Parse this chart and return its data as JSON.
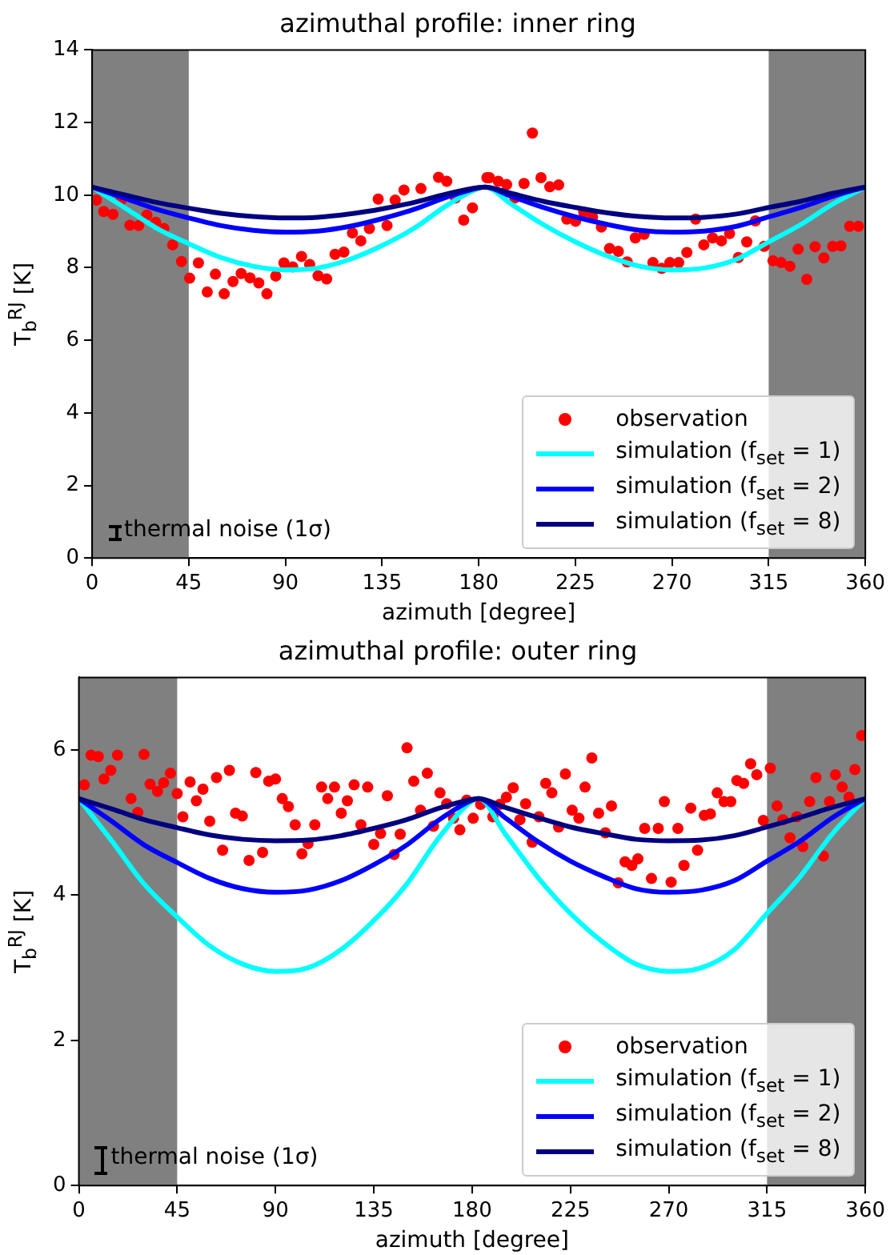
{
  "chart_data": [
    {
      "type": "scatter",
      "title": "azimuthal profile: inner ring",
      "xlabel": "azimuth [degree]",
      "ylabel": "T$_{b}$$^{RJ}$ [K]",
      "xlim": [
        0,
        360
      ],
      "xticks": [
        0,
        45,
        90,
        135,
        180,
        225,
        270,
        315,
        360
      ],
      "ylim": [
        0,
        14
      ],
      "yticks": [
        0,
        2,
        4,
        6,
        8,
        10,
        12,
        14
      ],
      "grid": false,
      "legend": "bottom right",
      "annotations": [
        "thermal noise (1σ)"
      ],
      "bands": [
        {
          "axis": "x",
          "from": 0,
          "to": 45,
          "color": "#808080"
        },
        {
          "axis": "x",
          "from": 315,
          "to": 360,
          "color": "#808080"
        }
      ],
      "series": [
        {
          "type": "scatter",
          "name": "observation",
          "color": "#ff0000",
          "marker": "circle",
          "x": [
            2.0,
            5.4,
            9.7,
            13.5,
            17.6,
            21.7,
            25.5,
            29.6,
            33.4,
            37.5,
            41.6,
            45.4,
            49.5,
            53.6,
            57.4,
            61.5,
            65.6,
            69.4,
            73.5,
            77.6,
            81.4,
            85.5,
            89.3,
            93.4,
            97.5,
            101.3,
            105.2,
            109.2,
            113.1,
            117.2,
            121.2,
            125.1,
            129.1,
            133.2,
            137.3,
            141.1,
            145.2,
            153.1,
            161.3,
            165.1,
            169.2,
            173.0,
            177.1,
            183.8,
            185.0,
            189.1,
            193.0,
            196.8,
            201.1,
            205.0,
            209.0,
            213.1,
            217.2,
            221.0,
            225.1,
            228.9,
            233.0,
            237.1,
            240.9,
            245.0,
            249.1,
            252.9,
            257.0,
            261.1,
            265.2,
            269.0,
            273.1,
            276.9,
            281.0,
            284.8,
            288.9,
            293.0,
            296.8,
            300.9,
            304.8,
            308.8,
            312.9,
            317.0,
            320.8,
            324.9,
            328.7,
            332.7,
            336.6,
            340.7,
            344.8,
            348.6,
            352.7,
            356.8
          ],
          "values": [
            9.86,
            9.55,
            9.47,
            9.86,
            9.17,
            9.16,
            9.45,
            9.25,
            9.08,
            8.63,
            8.17,
            7.71,
            8.13,
            7.33,
            7.82,
            7.28,
            7.62,
            7.84,
            7.72,
            7.58,
            7.28,
            7.77,
            8.13,
            8.02,
            8.31,
            8.09,
            7.78,
            7.69,
            8.37,
            8.43,
            8.96,
            8.74,
            9.08,
            9.89,
            9.16,
            9.86,
            10.14,
            10.18,
            10.49,
            10.38,
            9.92,
            9.31,
            9.65,
            10.48,
            10.48,
            10.38,
            10.29,
            9.92,
            10.32,
            11.71,
            10.48,
            10.23,
            10.28,
            9.34,
            9.28,
            9.53,
            9.4,
            9.12,
            8.53,
            8.45,
            8.16,
            8.82,
            8.92,
            8.14,
            7.98,
            8.14,
            8.14,
            8.42,
            9.34,
            8.63,
            8.82,
            8.74,
            8.94,
            8.28,
            8.71,
            9.29,
            8.59,
            8.19,
            8.14,
            8.04,
            8.51,
            7.68,
            8.58,
            8.27,
            8.59,
            8.6,
            9.14,
            9.14
          ]
        },
        {
          "type": "line",
          "name": "simulation (f$_{set}$ = 1)",
          "color": "#00ffff",
          "marker": "none",
          "x": [
            0,
            15,
            30,
            45,
            60,
            75,
            90,
            105,
            120,
            135,
            150,
            165,
            180,
            183,
            195,
            210,
            225,
            240,
            255,
            270,
            285,
            300,
            315,
            330,
            345,
            360
          ],
          "values": [
            10.22,
            9.66,
            9.09,
            8.66,
            8.28,
            8.04,
            7.94,
            7.99,
            8.23,
            8.61,
            9.09,
            9.71,
            10.19,
            10.22,
            9.76,
            9.19,
            8.71,
            8.32,
            8.04,
            7.94,
            7.99,
            8.23,
            8.71,
            9.19,
            9.76,
            10.22
          ]
        },
        {
          "type": "line",
          "name": "simulation (f$_{set}$ = 2)",
          "color": "#0000ff",
          "marker": "none",
          "x": [
            0,
            15,
            30,
            45,
            60,
            75,
            90,
            105,
            120,
            135,
            150,
            165,
            180,
            183,
            195,
            210,
            225,
            240,
            255,
            270,
            285,
            300,
            315,
            330,
            345,
            360
          ],
          "values": [
            10.22,
            9.92,
            9.61,
            9.37,
            9.16,
            9.03,
            8.98,
            9.01,
            9.14,
            9.35,
            9.61,
            9.94,
            10.2,
            10.22,
            9.97,
            9.66,
            9.4,
            9.19,
            9.03,
            8.98,
            9.01,
            9.14,
            9.4,
            9.66,
            9.97,
            10.22
          ]
        },
        {
          "type": "line",
          "name": "simulation (f$_{set}$ = 8)",
          "color": "#000080",
          "marker": "none",
          "x": [
            0,
            15,
            30,
            45,
            60,
            75,
            90,
            105,
            120,
            135,
            150,
            165,
            180,
            183,
            195,
            210,
            225,
            240,
            255,
            270,
            285,
            300,
            315,
            330,
            345,
            360
          ],
          "values": [
            10.22,
            10.01,
            9.8,
            9.64,
            9.5,
            9.41,
            9.37,
            9.39,
            9.48,
            9.62,
            9.8,
            10.03,
            10.21,
            10.22,
            10.05,
            9.83,
            9.66,
            9.51,
            9.41,
            9.37,
            9.39,
            9.48,
            9.66,
            9.83,
            10.05,
            10.22
          ]
        }
      ]
    },
    {
      "type": "scatter",
      "title": "azimuthal profile: outer ring",
      "xlabel": "azimuth [degree]",
      "ylabel": "T$_{b}$$^{RJ}$ [K]",
      "xlim": [
        0,
        360
      ],
      "xticks": [
        0,
        45,
        90,
        135,
        180,
        225,
        270,
        315,
        360
      ],
      "ylim": [
        0,
        7
      ],
      "yticks": [
        0,
        2,
        4,
        6
      ],
      "grid": false,
      "legend": "bottom right",
      "annotations": [
        "thermal noise (1σ)"
      ],
      "bands": [
        {
          "axis": "x",
          "from": 0,
          "to": 45,
          "color": "#808080"
        },
        {
          "axis": "x",
          "from": 315,
          "to": 360,
          "color": "#808080"
        }
      ],
      "series": [
        {
          "type": "scatter",
          "name": "observation",
          "color": "#ff0000",
          "marker": "circle",
          "x": [
            2.5,
            5.6,
            8.9,
            11.5,
            14.6,
            17.7,
            23.9,
            27.0,
            29.8,
            32.6,
            36.0,
            38.8,
            41.9,
            45.0,
            47.6,
            50.9,
            53.8,
            56.8,
            59.9,
            63.0,
            65.8,
            68.9,
            71.7,
            74.8,
            77.9,
            81.0,
            84.1,
            86.9,
            90.0,
            93.1,
            95.9,
            99.0,
            102.1,
            104.9,
            108.0,
            111.1,
            113.9,
            117.0,
            120.1,
            122.9,
            126.0,
            129.1,
            132.2,
            135.0,
            138.1,
            141.2,
            144.3,
            147.1,
            150.2,
            153.3,
            156.4,
            159.5,
            162.3,
            165.3,
            168.4,
            171.5,
            174.4,
            177.5,
            180.5,
            183.9,
            189.5,
            192.6,
            195.7,
            198.8,
            201.9,
            204.5,
            207.5,
            210.6,
            213.7,
            216.5,
            219.6,
            222.7,
            225.8,
            228.9,
            231.7,
            234.8,
            237.9,
            241.0,
            243.8,
            246.9,
            250.0,
            253.1,
            255.9,
            259.0,
            262.1,
            265.2,
            268.0,
            271.1,
            274.2,
            277.0,
            280.1,
            283.2,
            286.3,
            289.1,
            292.2,
            295.3,
            298.4,
            301.2,
            304.3,
            307.5,
            310.3,
            313.3,
            316.5,
            319.6,
            322.3,
            325.5,
            328.6,
            331.4,
            334.5,
            337.4,
            340.8,
            343.6,
            346.3,
            349.4,
            352.5,
            355.2,
            358.3
          ],
          "values": [
            5.52,
            5.93,
            5.91,
            5.6,
            5.72,
            5.93,
            5.33,
            5.14,
            5.94,
            5.53,
            5.43,
            5.55,
            5.68,
            5.4,
            5.08,
            5.56,
            5.3,
            5.46,
            5.02,
            5.62,
            4.62,
            5.72,
            5.13,
            5.09,
            4.48,
            5.69,
            4.59,
            5.57,
            5.6,
            5.33,
            5.22,
            4.97,
            4.57,
            4.71,
            4.97,
            5.49,
            5.33,
            5.49,
            5.13,
            5.3,
            5.52,
            4.97,
            5.49,
            4.7,
            4.85,
            5.37,
            4.56,
            4.84,
            6.03,
            5.57,
            5.17,
            5.68,
            4.95,
            5.41,
            5.26,
            5.06,
            4.9,
            5.31,
            5.06,
            5.25,
            5.08,
            5.25,
            5.35,
            5.48,
            5.04,
            5.26,
            4.73,
            5.08,
            5.54,
            5.41,
            4.94,
            5.67,
            5.17,
            5.06,
            5.49,
            5.89,
            5.13,
            4.86,
            5.23,
            4.17,
            4.46,
            4.41,
            4.5,
            4.92,
            4.23,
            4.92,
            5.29,
            4.18,
            4.92,
            4.41,
            5.2,
            4.62,
            5.1,
            5.12,
            5.41,
            5.29,
            5.29,
            5.58,
            5.54,
            5.81,
            5.66,
            5.03,
            5.75,
            5.23,
            5.04,
            4.79,
            5.08,
            4.67,
            5.29,
            5.62,
            4.54,
            5.29,
            5.66,
            5.49,
            5.35,
            5.73,
            6.2
          ]
        },
        {
          "type": "line",
          "name": "simulation (f$_{set}$ = 1)",
          "color": "#00ffff",
          "marker": "none",
          "x": [
            0,
            15,
            30,
            45,
            60,
            75,
            90,
            105,
            120,
            135,
            150,
            165,
            180,
            183,
            195,
            210,
            225,
            240,
            255,
            270,
            285,
            300,
            315,
            330,
            345,
            360
          ],
          "values": [
            5.33,
            4.75,
            4.15,
            3.7,
            3.3,
            3.05,
            2.95,
            3.0,
            3.25,
            3.65,
            4.15,
            4.8,
            5.3,
            5.33,
            4.85,
            4.25,
            3.75,
            3.35,
            3.05,
            2.95,
            3.0,
            3.25,
            3.75,
            4.25,
            4.85,
            5.33
          ]
        },
        {
          "type": "line",
          "name": "simulation (f$_{set}$ = 2)",
          "color": "#0000ff",
          "marker": "none",
          "x": [
            0,
            15,
            30,
            45,
            60,
            75,
            90,
            105,
            120,
            135,
            150,
            165,
            180,
            183,
            195,
            210,
            225,
            240,
            255,
            270,
            285,
            300,
            315,
            330,
            345,
            360
          ],
          "values": [
            5.33,
            5.02,
            4.69,
            4.45,
            4.23,
            4.09,
            4.04,
            4.07,
            4.2,
            4.42,
            4.69,
            5.04,
            5.31,
            5.33,
            5.07,
            4.74,
            4.47,
            4.26,
            4.09,
            4.04,
            4.07,
            4.2,
            4.47,
            4.74,
            5.07,
            5.33
          ]
        },
        {
          "type": "line",
          "name": "simulation (f$_{set}$ = 8)",
          "color": "#000080",
          "marker": "none",
          "x": [
            0,
            15,
            30,
            45,
            60,
            75,
            90,
            105,
            120,
            135,
            150,
            165,
            180,
            183,
            195,
            210,
            225,
            240,
            255,
            270,
            285,
            300,
            315,
            330,
            345,
            360
          ],
          "values": [
            5.33,
            5.19,
            5.04,
            4.93,
            4.83,
            4.77,
            4.75,
            4.76,
            4.82,
            4.92,
            5.04,
            5.2,
            5.32,
            5.33,
            5.21,
            5.07,
            4.94,
            4.85,
            4.77,
            4.75,
            4.76,
            4.82,
            4.94,
            5.07,
            5.21,
            5.33
          ]
        }
      ]
    }
  ]
}
